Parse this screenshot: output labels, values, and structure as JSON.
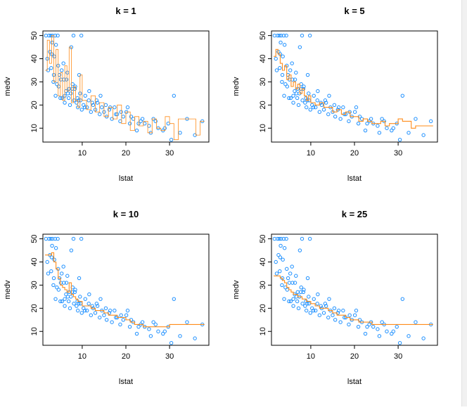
{
  "page": {
    "background": "#ffffff"
  },
  "style": {
    "point_color": "#1e90ff",
    "line_color": "#ff8c1a",
    "axis_color": "#000000"
  },
  "chart_data": [
    {
      "type": "scatter",
      "title": "k = 1",
      "xlabel": "lstat",
      "ylabel": "medv",
      "xlim": [
        1,
        39
      ],
      "ylim": [
        4,
        52
      ],
      "xticks": [
        10,
        20,
        30
      ],
      "yticks": [
        10,
        20,
        30,
        40,
        50
      ],
      "grid": false,
      "fit_line": {
        "x": [
          1.5,
          2,
          2.5,
          3,
          3.5,
          4,
          4.5,
          5,
          5.5,
          6,
          6.5,
          7,
          7.5,
          8,
          8.5,
          9,
          9.5,
          10,
          11,
          12,
          13,
          14,
          15,
          16,
          17,
          18,
          19,
          20,
          21,
          22,
          23,
          24,
          25,
          26,
          27,
          28,
          29,
          30,
          31,
          32,
          33,
          34,
          35,
          36,
          37,
          38
        ],
        "y": [
          35,
          48,
          38,
          50,
          30,
          44,
          24,
          34,
          22,
          37,
          26,
          45,
          21,
          28,
          22,
          19,
          33,
          22,
          18,
          24,
          17,
          21,
          15,
          19,
          14,
          20,
          12,
          17,
          9,
          15,
          11,
          13,
          8,
          14,
          10,
          9,
          15,
          12,
          5,
          14,
          14,
          14,
          14,
          7,
          13,
          13
        ]
      },
      "points": {
        "x": [
          1.7,
          2.2,
          2.6,
          2.9,
          3.1,
          3.4,
          3.6,
          3.9,
          4.2,
          4.5,
          4.8,
          5.1,
          5.4,
          5.7,
          6.0,
          6.3,
          6.6,
          6.9,
          7.2,
          7.5,
          7.8,
          8.1,
          8.4,
          8.7,
          9.0,
          9.3,
          9.6,
          9.9,
          10.3,
          10.7,
          11.1,
          11.5,
          12.0,
          12.5,
          13.0,
          13.5,
          14.0,
          14.5,
          15.0,
          15.6,
          16.2,
          16.8,
          17.4,
          18.0,
          18.7,
          19.4,
          20.1,
          20.9,
          21.7,
          22.5,
          23.4,
          24.3,
          25.3,
          26.3,
          27.4,
          28.5,
          29.7,
          31.0,
          32.4,
          34.0,
          35.8,
          37.5,
          2.0,
          3.0,
          4.0,
          5.0,
          6.0,
          7.0,
          8.0,
          9.5,
          3.5,
          4.6,
          5.8,
          6.7,
          7.7,
          8.9,
          10.6,
          12.3,
          14.2,
          16.4,
          18.9,
          21.2,
          23.8,
          26.8,
          5.3,
          6.4,
          7.4,
          8.3,
          9.2,
          11.6,
          13.3,
          15.4,
          17.7,
          20.4,
          22.9,
          25.7,
          28.9,
          30.4,
          2.4,
          2.8,
          3.2,
          3.8,
          4.4,
          9.8
        ],
        "y": [
          50,
          35,
          43,
          36,
          47,
          30,
          41,
          24,
          29,
          37,
          33,
          31,
          23,
          38,
          21,
          26,
          34,
          23,
          20,
          45,
          29,
          22,
          28,
          21,
          19,
          33,
          22,
          18,
          20,
          24,
          19,
          22,
          17,
          20,
          18,
          21,
          16,
          19,
          17,
          15,
          18,
          14,
          19,
          16,
          13,
          15,
          17,
          12,
          14,
          9,
          13,
          12,
          11,
          14,
          10,
          9,
          12,
          24,
          8,
          14,
          7,
          13,
          40,
          42,
          46,
          23,
          24,
          27,
          50,
          25,
          33,
          28,
          31,
          25,
          27,
          23,
          19,
          21,
          24,
          19,
          17,
          15,
          14,
          13,
          35,
          31,
          25,
          27,
          22,
          26,
          22,
          20,
          16,
          19,
          12,
          8,
          10,
          5,
          50,
          50,
          50,
          50,
          50,
          50
        ]
      }
    },
    {
      "type": "scatter",
      "title": "k = 5",
      "xlabel": "lstat",
      "ylabel": "medv",
      "xlim": [
        1,
        39
      ],
      "ylim": [
        4,
        52
      ],
      "xticks": [
        10,
        20,
        30
      ],
      "yticks": [
        10,
        20,
        30,
        40,
        50
      ],
      "grid": false,
      "fit_line": {
        "x": [
          1.5,
          2,
          2.5,
          3,
          3.5,
          4,
          4.5,
          5,
          5.5,
          6,
          6.5,
          7,
          7.5,
          8,
          8.5,
          9,
          9.5,
          10,
          11,
          12,
          13,
          14,
          15,
          16,
          17,
          18,
          19,
          20,
          21,
          22,
          23,
          24,
          25,
          26,
          27,
          28,
          29,
          30,
          31,
          32,
          33,
          34,
          35,
          36,
          37,
          38
        ],
        "y": [
          41,
          44,
          42,
          38,
          35,
          37,
          31,
          33,
          28,
          30,
          27,
          29,
          25,
          27,
          24,
          22,
          24,
          21,
          20,
          21,
          19,
          19,
          17,
          18,
          16,
          17,
          15,
          15,
          13,
          14,
          13,
          12,
          12,
          13,
          11,
          12,
          12,
          14,
          13,
          13,
          10,
          11,
          11,
          11,
          11,
          11
        ]
      },
      "points": {
        "x": [
          1.7,
          2.2,
          2.6,
          2.9,
          3.1,
          3.4,
          3.6,
          3.9,
          4.2,
          4.5,
          4.8,
          5.1,
          5.4,
          5.7,
          6.0,
          6.3,
          6.6,
          6.9,
          7.2,
          7.5,
          7.8,
          8.1,
          8.4,
          8.7,
          9.0,
          9.3,
          9.6,
          9.9,
          10.3,
          10.7,
          11.1,
          11.5,
          12.0,
          12.5,
          13.0,
          13.5,
          14.0,
          14.5,
          15.0,
          15.6,
          16.2,
          16.8,
          17.4,
          18.0,
          18.7,
          19.4,
          20.1,
          20.9,
          21.7,
          22.5,
          23.4,
          24.3,
          25.3,
          26.3,
          27.4,
          28.5,
          29.7,
          31.0,
          32.4,
          34.0,
          35.8,
          37.5,
          2.0,
          3.0,
          4.0,
          5.0,
          6.0,
          7.0,
          8.0,
          9.5,
          3.5,
          4.6,
          5.8,
          6.7,
          7.7,
          8.9,
          10.6,
          12.3,
          14.2,
          16.4,
          18.9,
          21.2,
          23.8,
          26.8,
          5.3,
          6.4,
          7.4,
          8.3,
          9.2,
          11.6,
          13.3,
          15.4,
          17.7,
          20.4,
          22.9,
          25.7,
          28.9,
          30.4,
          2.4,
          2.8,
          3.2,
          3.8,
          4.4,
          9.8
        ],
        "y": [
          50,
          35,
          43,
          36,
          47,
          30,
          41,
          24,
          29,
          37,
          33,
          31,
          23,
          38,
          21,
          26,
          34,
          23,
          20,
          45,
          29,
          22,
          28,
          21,
          19,
          33,
          22,
          18,
          20,
          24,
          19,
          22,
          17,
          20,
          18,
          21,
          16,
          19,
          17,
          15,
          18,
          14,
          19,
          16,
          13,
          15,
          17,
          12,
          14,
          9,
          13,
          12,
          11,
          14,
          10,
          9,
          12,
          24,
          8,
          14,
          7,
          13,
          40,
          42,
          46,
          23,
          24,
          27,
          50,
          25,
          33,
          28,
          31,
          25,
          27,
          23,
          19,
          21,
          24,
          19,
          17,
          15,
          14,
          13,
          35,
          31,
          25,
          27,
          22,
          26,
          22,
          20,
          16,
          19,
          12,
          8,
          10,
          5,
          50,
          50,
          50,
          50,
          50,
          50
        ]
      }
    },
    {
      "type": "scatter",
      "title": "k = 10",
      "xlabel": "lstat",
      "ylabel": "medv",
      "xlim": [
        1,
        39
      ],
      "ylim": [
        4,
        52
      ],
      "xticks": [
        10,
        20,
        30
      ],
      "yticks": [
        10,
        20,
        30,
        40,
        50
      ],
      "grid": false,
      "fit_line": {
        "x": [
          1.5,
          2,
          2.5,
          3,
          3.5,
          4,
          4.5,
          5,
          5.5,
          6,
          6.5,
          7,
          7.5,
          8,
          8.5,
          9,
          9.5,
          10,
          11,
          12,
          13,
          14,
          15,
          16,
          17,
          18,
          19,
          20,
          21,
          22,
          23,
          24,
          25,
          26,
          27,
          28,
          29,
          30,
          31,
          32,
          33,
          34,
          35,
          36,
          37,
          38
        ],
        "y": [
          43,
          43,
          43,
          44,
          40,
          37,
          33,
          30,
          29,
          28,
          27,
          31,
          26,
          25,
          24,
          23,
          23,
          21,
          21,
          20,
          19,
          19,
          18,
          17,
          17,
          16,
          16,
          15,
          14,
          13,
          13,
          12,
          12,
          12,
          12,
          12,
          12,
          13,
          13,
          13,
          13,
          13,
          13,
          13,
          13,
          13
        ]
      },
      "points": {
        "x": [
          1.7,
          2.2,
          2.6,
          2.9,
          3.1,
          3.4,
          3.6,
          3.9,
          4.2,
          4.5,
          4.8,
          5.1,
          5.4,
          5.7,
          6.0,
          6.3,
          6.6,
          6.9,
          7.2,
          7.5,
          7.8,
          8.1,
          8.4,
          8.7,
          9.0,
          9.3,
          9.6,
          9.9,
          10.3,
          10.7,
          11.1,
          11.5,
          12.0,
          12.5,
          13.0,
          13.5,
          14.0,
          14.5,
          15.0,
          15.6,
          16.2,
          16.8,
          17.4,
          18.0,
          18.7,
          19.4,
          20.1,
          20.9,
          21.7,
          22.5,
          23.4,
          24.3,
          25.3,
          26.3,
          27.4,
          28.5,
          29.7,
          31.0,
          32.4,
          34.0,
          35.8,
          37.5,
          2.0,
          3.0,
          4.0,
          5.0,
          6.0,
          7.0,
          8.0,
          9.5,
          3.5,
          4.6,
          5.8,
          6.7,
          7.7,
          8.9,
          10.6,
          12.3,
          14.2,
          16.4,
          18.9,
          21.2,
          23.8,
          26.8,
          5.3,
          6.4,
          7.4,
          8.3,
          9.2,
          11.6,
          13.3,
          15.4,
          17.7,
          20.4,
          22.9,
          25.7,
          28.9,
          30.4,
          2.4,
          2.8,
          3.2,
          3.8,
          4.4,
          9.8
        ],
        "y": [
          50,
          35,
          43,
          36,
          47,
          30,
          41,
          24,
          29,
          37,
          33,
          31,
          23,
          38,
          21,
          26,
          34,
          23,
          20,
          45,
          29,
          22,
          28,
          21,
          19,
          33,
          22,
          18,
          20,
          24,
          19,
          22,
          17,
          20,
          18,
          21,
          16,
          19,
          17,
          15,
          18,
          14,
          19,
          16,
          13,
          15,
          17,
          12,
          14,
          9,
          13,
          12,
          11,
          14,
          10,
          9,
          12,
          24,
          8,
          14,
          7,
          13,
          40,
          42,
          46,
          23,
          24,
          27,
          50,
          25,
          33,
          28,
          31,
          25,
          27,
          23,
          19,
          21,
          24,
          19,
          17,
          15,
          14,
          13,
          35,
          31,
          25,
          27,
          22,
          26,
          22,
          20,
          16,
          19,
          12,
          8,
          10,
          5,
          50,
          50,
          50,
          50,
          50,
          50
        ]
      }
    },
    {
      "type": "scatter",
      "title": "k = 25",
      "xlabel": "lstat",
      "ylabel": "medv",
      "xlim": [
        1,
        39
      ],
      "ylim": [
        4,
        52
      ],
      "xticks": [
        10,
        20,
        30
      ],
      "yticks": [
        10,
        20,
        30,
        40,
        50
      ],
      "grid": false,
      "fit_line": {
        "x": [
          1.5,
          2,
          2.5,
          3,
          3.5,
          4,
          4.5,
          5,
          5.5,
          6,
          6.5,
          7,
          7.5,
          8,
          8.5,
          9,
          9.5,
          10,
          11,
          12,
          13,
          14,
          15,
          16,
          17,
          18,
          19,
          20,
          21,
          22,
          23,
          24,
          25,
          26,
          27,
          28,
          29,
          30,
          31,
          32,
          33,
          34,
          35,
          36,
          37,
          38
        ],
        "y": [
          34,
          34,
          34,
          33,
          32,
          31,
          29,
          28,
          27,
          26,
          26,
          25,
          25,
          24,
          24,
          23,
          23,
          22,
          21,
          20,
          20,
          19,
          18,
          17,
          17,
          16,
          15,
          15,
          14,
          14,
          14,
          13,
          13,
          13,
          13,
          13,
          13,
          13,
          13,
          13,
          13,
          13,
          13,
          13,
          13,
          13
        ]
      },
      "points": {
        "x": [
          1.7,
          2.2,
          2.6,
          2.9,
          3.1,
          3.4,
          3.6,
          3.9,
          4.2,
          4.5,
          4.8,
          5.1,
          5.4,
          5.7,
          6.0,
          6.3,
          6.6,
          6.9,
          7.2,
          7.5,
          7.8,
          8.1,
          8.4,
          8.7,
          9.0,
          9.3,
          9.6,
          9.9,
          10.3,
          10.7,
          11.1,
          11.5,
          12.0,
          12.5,
          13.0,
          13.5,
          14.0,
          14.5,
          15.0,
          15.6,
          16.2,
          16.8,
          17.4,
          18.0,
          18.7,
          19.4,
          20.1,
          20.9,
          21.7,
          22.5,
          23.4,
          24.3,
          25.3,
          26.3,
          27.4,
          28.5,
          29.7,
          31.0,
          32.4,
          34.0,
          35.8,
          37.5,
          2.0,
          3.0,
          4.0,
          5.0,
          6.0,
          7.0,
          8.0,
          9.5,
          3.5,
          4.6,
          5.8,
          6.7,
          7.7,
          8.9,
          10.6,
          12.3,
          14.2,
          16.4,
          18.9,
          21.2,
          23.8,
          26.8,
          5.3,
          6.4,
          7.4,
          8.3,
          9.2,
          11.6,
          13.3,
          15.4,
          17.7,
          20.4,
          22.9,
          25.7,
          28.9,
          30.4,
          2.4,
          2.8,
          3.2,
          3.8,
          4.4,
          9.8
        ],
        "y": [
          50,
          35,
          43,
          36,
          47,
          30,
          41,
          24,
          29,
          37,
          33,
          31,
          23,
          38,
          21,
          26,
          34,
          23,
          20,
          45,
          29,
          22,
          28,
          21,
          19,
          33,
          22,
          18,
          20,
          24,
          19,
          22,
          17,
          20,
          18,
          21,
          16,
          19,
          17,
          15,
          18,
          14,
          19,
          16,
          13,
          15,
          17,
          12,
          14,
          9,
          13,
          12,
          11,
          14,
          10,
          9,
          12,
          24,
          8,
          14,
          7,
          13,
          40,
          42,
          46,
          23,
          24,
          27,
          50,
          25,
          33,
          28,
          31,
          25,
          27,
          23,
          19,
          21,
          24,
          19,
          17,
          15,
          14,
          13,
          35,
          31,
          25,
          27,
          22,
          26,
          22,
          20,
          16,
          19,
          12,
          8,
          10,
          5,
          50,
          50,
          50,
          50,
          50,
          50
        ]
      }
    }
  ]
}
